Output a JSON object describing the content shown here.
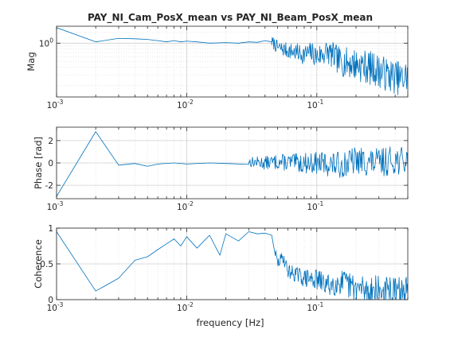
{
  "figure": {
    "title": "PAY_NI_Cam_PosX_mean vs PAY_NI_Beam_PosX_mean",
    "xlabel": "frequency [Hz]",
    "line_color": "#0072bd",
    "x_tick_labels": [
      "10^{-3}",
      "10^{-2}",
      "10^{-1}"
    ]
  },
  "chart_data": [
    {
      "type": "line",
      "panel": "magnitude",
      "title": "PAY_NI_Cam_PosX_mean vs PAY_NI_Beam_PosX_mean",
      "xlabel": "",
      "ylabel": "Mag",
      "x_scale": "log",
      "y_scale": "log",
      "xlim": [
        0.001,
        0.5
      ],
      "ylim": [
        0.13,
        1.9
      ],
      "y_ticks": [
        {
          "value": 1,
          "label": "10^0"
        }
      ],
      "grid": true,
      "x": [
        0.001,
        0.002,
        0.003,
        0.004,
        0.005,
        0.006,
        0.007,
        0.008,
        0.009,
        0.01,
        0.012,
        0.015,
        0.02,
        0.025,
        0.03,
        0.035,
        0.04,
        0.045,
        0.05,
        0.06,
        0.07,
        0.08,
        0.09,
        0.1,
        0.12,
        0.15,
        0.2,
        0.25,
        0.3,
        0.35,
        0.4,
        0.45,
        0.5
      ],
      "values": [
        1.8,
        1.05,
        1.2,
        1.18,
        1.15,
        1.1,
        1.05,
        1.1,
        1.05,
        1.08,
        1.05,
        1.0,
        1.02,
        1.0,
        1.05,
        1.03,
        1.1,
        1.05,
        0.85,
        0.75,
        0.7,
        0.65,
        0.7,
        0.6,
        0.72,
        0.5,
        0.45,
        0.4,
        0.35,
        0.3,
        0.28,
        0.25,
        0.3
      ],
      "noise": {
        "from_x": 0.045,
        "amplitude": 0.28,
        "seed": 7
      }
    },
    {
      "type": "line",
      "panel": "phase",
      "xlabel": "",
      "ylabel": "Phase [rad]",
      "x_scale": "log",
      "xlim": [
        0.001,
        0.5
      ],
      "ylim": [
        -3.2,
        3.2
      ],
      "y_ticks": [
        {
          "value": -2,
          "label": "-2"
        },
        {
          "value": 0,
          "label": "0"
        },
        {
          "value": 2,
          "label": "2"
        }
      ],
      "grid": true,
      "x": [
        0.001,
        0.002,
        0.003,
        0.004,
        0.005,
        0.006,
        0.008,
        0.01,
        0.015,
        0.02,
        0.03,
        0.04,
        0.05,
        0.07,
        0.1,
        0.15,
        0.2,
        0.3,
        0.4,
        0.5
      ],
      "values": [
        -3.0,
        2.8,
        -0.2,
        -0.05,
        -0.3,
        -0.1,
        0.0,
        -0.1,
        0.0,
        -0.05,
        0.1,
        0.0,
        0.1,
        0.0,
        0.0,
        -0.2,
        0.2,
        0.0,
        0.3,
        0.0
      ],
      "noise": {
        "from_x": 0.03,
        "amplitude": 1.3,
        "seed": 13
      }
    },
    {
      "type": "line",
      "panel": "coherence",
      "xlabel": "frequency [Hz]",
      "ylabel": "Coherence",
      "x_scale": "log",
      "xlim": [
        0.001,
        0.5
      ],
      "ylim": [
        0,
        1
      ],
      "y_ticks": [
        {
          "value": 0,
          "label": "0"
        },
        {
          "value": 0.5,
          "label": "0.5"
        },
        {
          "value": 1,
          "label": "1"
        }
      ],
      "grid": true,
      "x": [
        0.001,
        0.002,
        0.003,
        0.004,
        0.005,
        0.006,
        0.007,
        0.008,
        0.009,
        0.01,
        0.012,
        0.015,
        0.018,
        0.02,
        0.025,
        0.03,
        0.035,
        0.04,
        0.045,
        0.05,
        0.055,
        0.06,
        0.07,
        0.08,
        0.1,
        0.12,
        0.15,
        0.2,
        0.3,
        0.4,
        0.5
      ],
      "values": [
        0.95,
        0.12,
        0.3,
        0.55,
        0.6,
        0.7,
        0.78,
        0.85,
        0.75,
        0.88,
        0.72,
        0.9,
        0.62,
        0.92,
        0.82,
        0.95,
        0.92,
        0.93,
        0.9,
        0.5,
        0.6,
        0.4,
        0.35,
        0.3,
        0.28,
        0.2,
        0.25,
        0.15,
        0.12,
        0.1,
        0.1
      ],
      "noise": {
        "from_x": 0.048,
        "amplitude": 0.22,
        "seed": 29
      }
    }
  ]
}
